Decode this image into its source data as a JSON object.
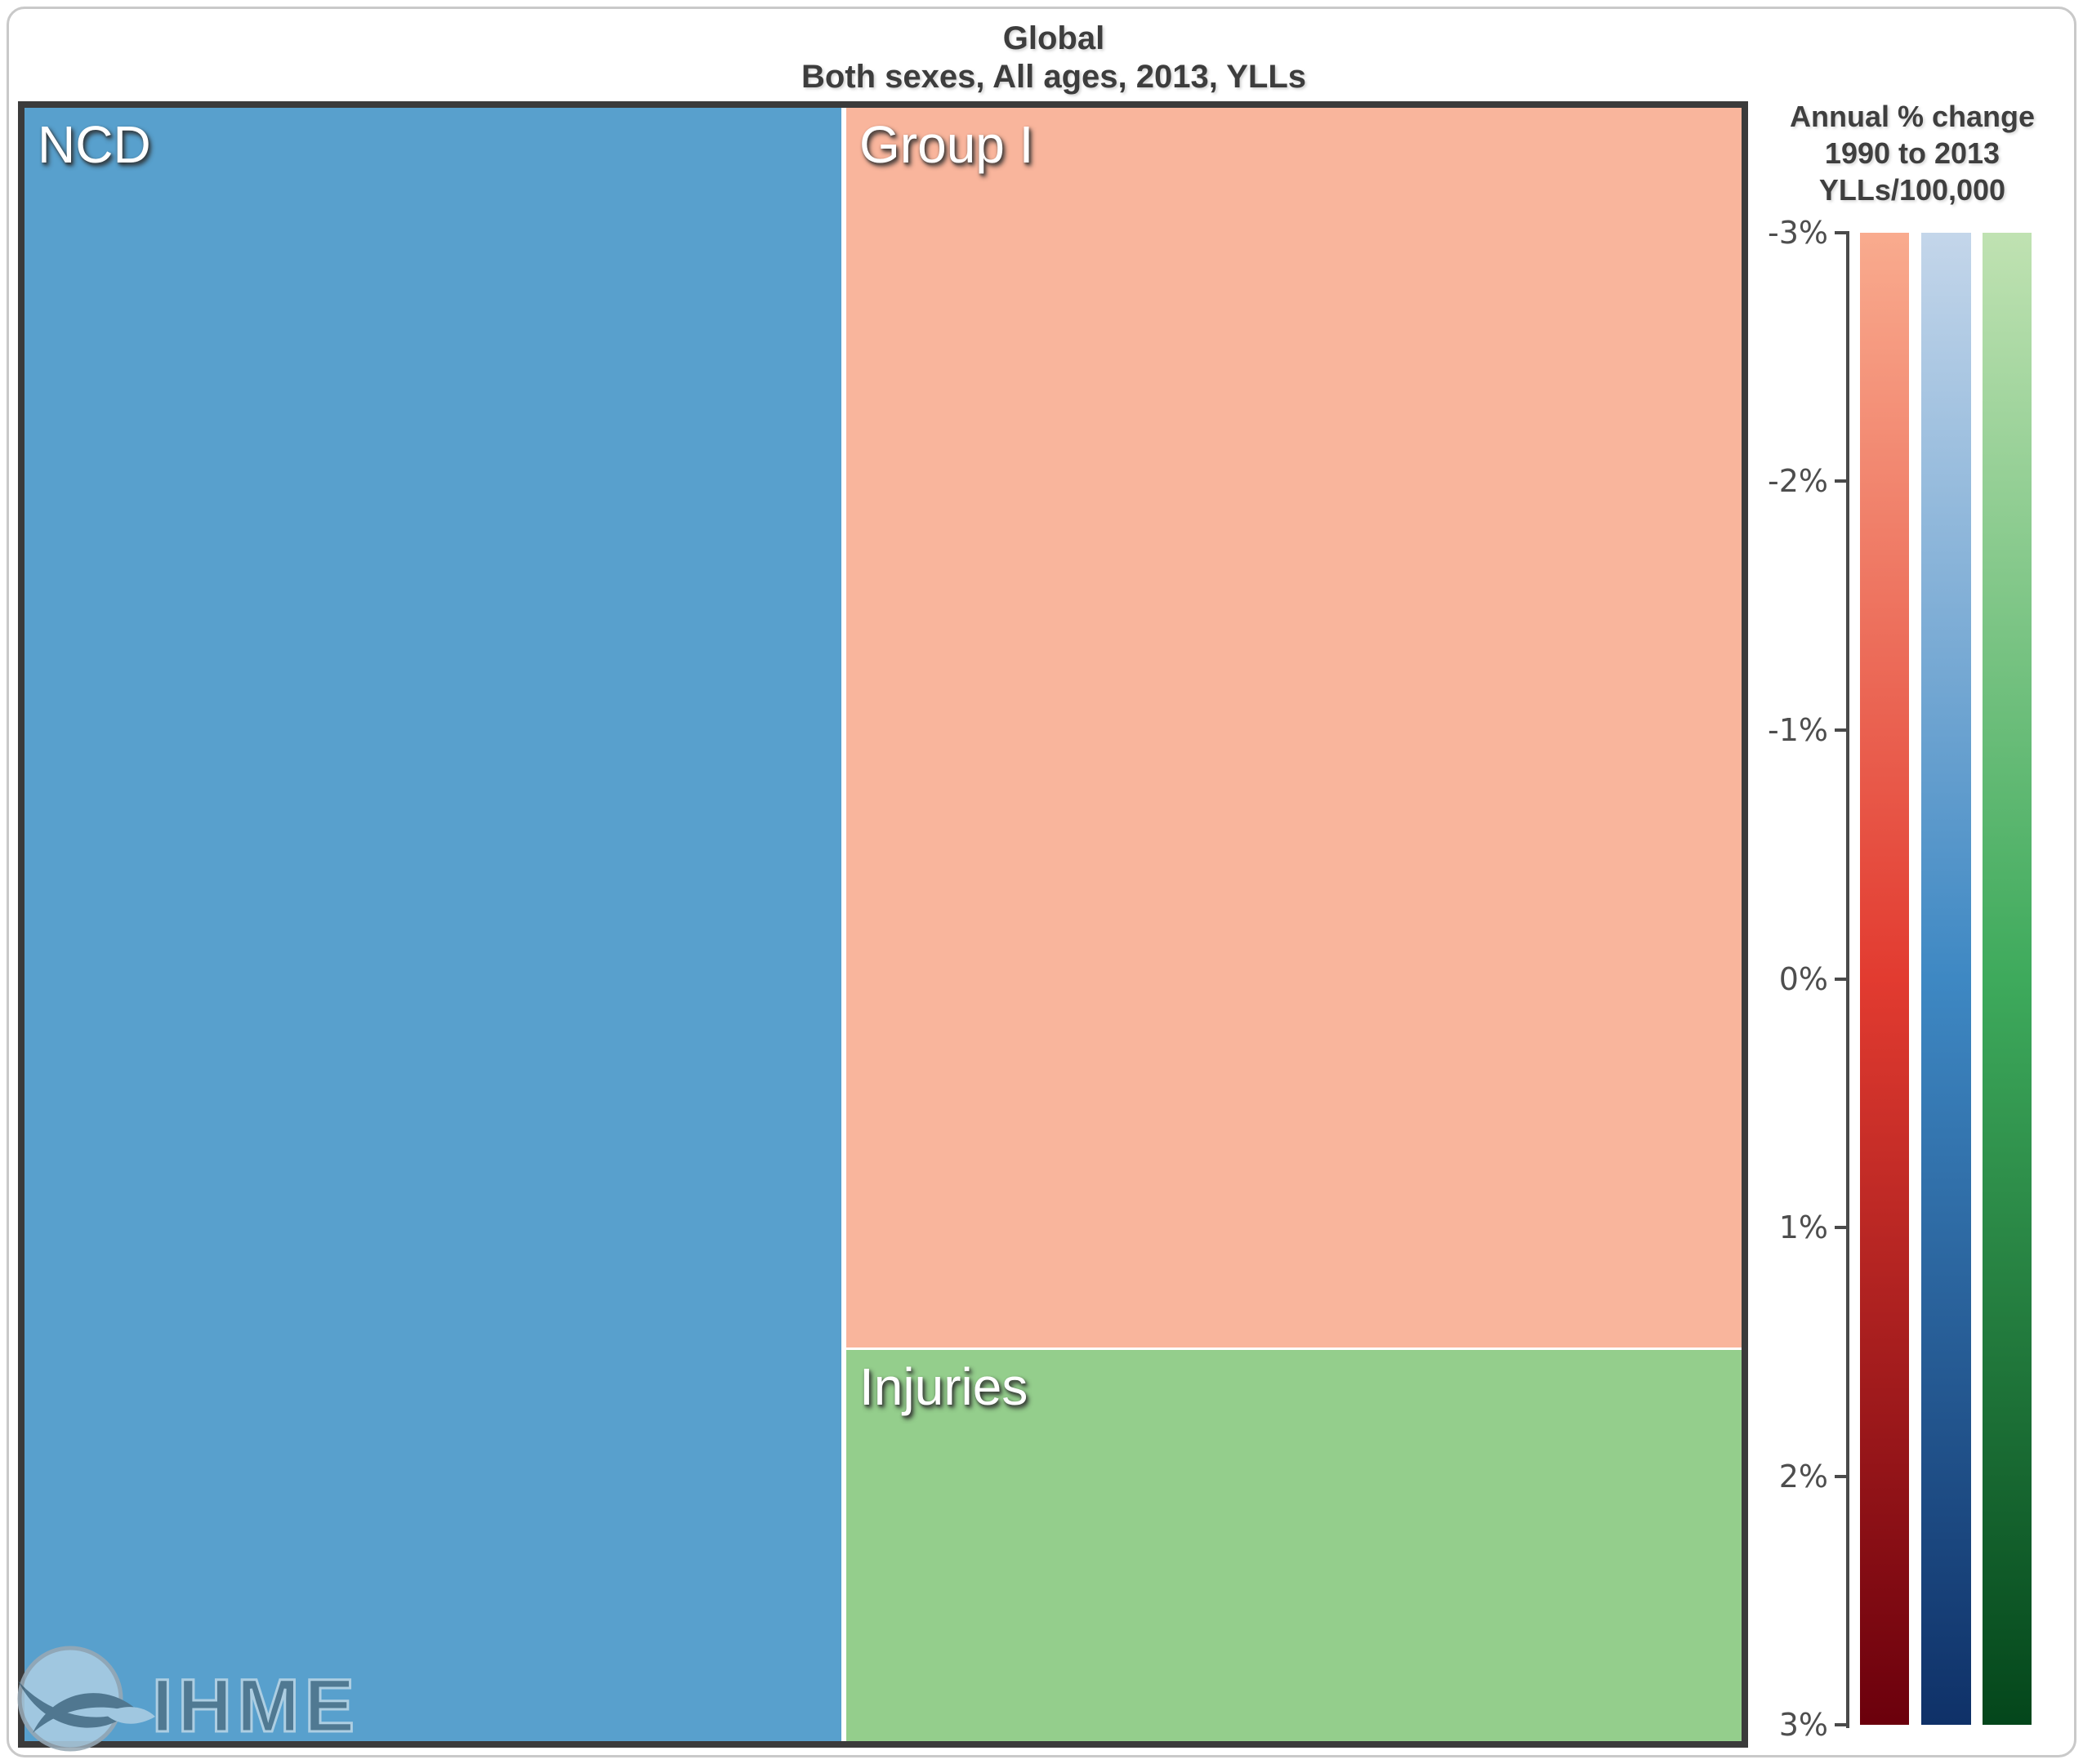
{
  "page": {
    "title_line1": "Global",
    "title_line2": "Both sexes, All ages, 2013, YLLs"
  },
  "chart_data": {
    "type": "treemap",
    "title": "Global",
    "subtitle": "Both sexes, All ages, 2013, YLLs",
    "measure": "YLLs",
    "year": "2013",
    "cells": [
      {
        "label": "NCD",
        "color": "#58A0CD",
        "area_share_pct": 47.6
      },
      {
        "label": "Group I",
        "color": "#F9B59C",
        "area_share_pct": 39.7
      },
      {
        "label": "Injuries",
        "color": "#94CE8C",
        "area_share_pct": 12.7
      }
    ],
    "legend": {
      "title_lines": [
        "Annual % change",
        "1990 to 2013",
        "YLLs/100,000"
      ],
      "ticks": [
        "-3%",
        "-2%",
        "-1%",
        "0%",
        "1%",
        "2%",
        "3%"
      ],
      "range": [
        -3,
        3
      ],
      "bars": [
        {
          "name": "group1-scale",
          "stops": [
            "#F9AB8E",
            "#E23B30",
            "#6B000C"
          ]
        },
        {
          "name": "ncd-scale",
          "stops": [
            "#C4D6EA",
            "#3E88C3",
            "#0F3168"
          ]
        },
        {
          "name": "injuries-scale",
          "stops": [
            "#C0E2B2",
            "#3EAA5C",
            "#04461B"
          ]
        }
      ]
    }
  },
  "watermark": {
    "text": "IHME"
  }
}
